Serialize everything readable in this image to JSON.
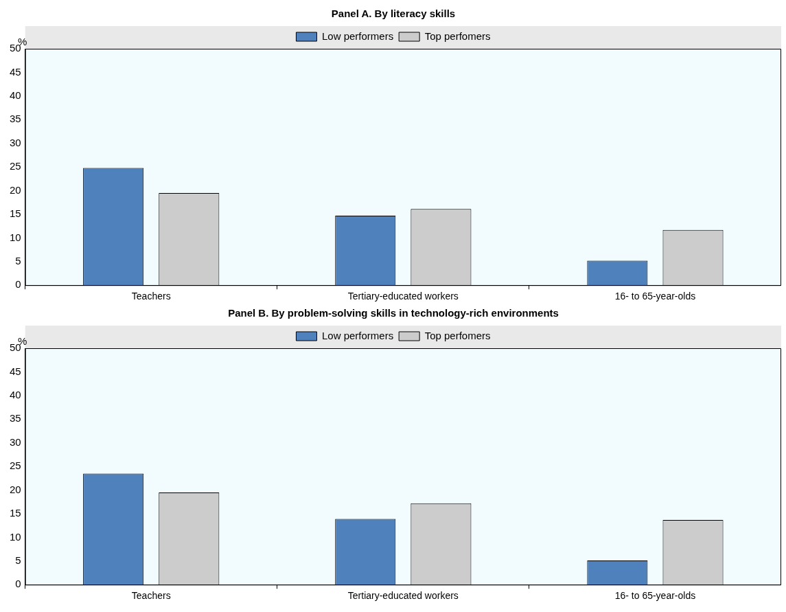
{
  "chart_data": [
    {
      "type": "bar",
      "title": "Panel A. By literacy skills",
      "ylabel": "%",
      "categories": [
        "Teachers",
        "Tertiary-educated workers",
        "16- to 65-year-olds"
      ],
      "series": [
        {
          "name": "Low performers",
          "color": "#4f81bd",
          "values": [
            24.8,
            14.7,
            5.2
          ]
        },
        {
          "name": "Top perfomers",
          "color": "#cccccc",
          "values": [
            19.5,
            16.1,
            11.7
          ]
        }
      ],
      "ylim": [
        0,
        50
      ],
      "yticks": [
        0,
        5,
        10,
        15,
        20,
        25,
        30,
        35,
        40,
        45,
        50
      ],
      "grid": false,
      "legend": "top"
    },
    {
      "type": "bar",
      "title": "Panel B. By problem-solving skills in technology-rich environments",
      "ylabel": "%",
      "categories": [
        "Teachers",
        "Tertiary-educated workers",
        "16- to 65-year-olds"
      ],
      "series": [
        {
          "name": "Low performers",
          "color": "#4f81bd",
          "values": [
            23.5,
            13.9,
            5.1
          ]
        },
        {
          "name": "Top perfomers",
          "color": "#cccccc",
          "values": [
            19.5,
            17.2,
            13.7
          ]
        }
      ],
      "ylim": [
        0,
        50
      ],
      "yticks": [
        0,
        5,
        10,
        15,
        20,
        25,
        30,
        35,
        40,
        45,
        50
      ],
      "grid": false,
      "legend": "top"
    }
  ]
}
